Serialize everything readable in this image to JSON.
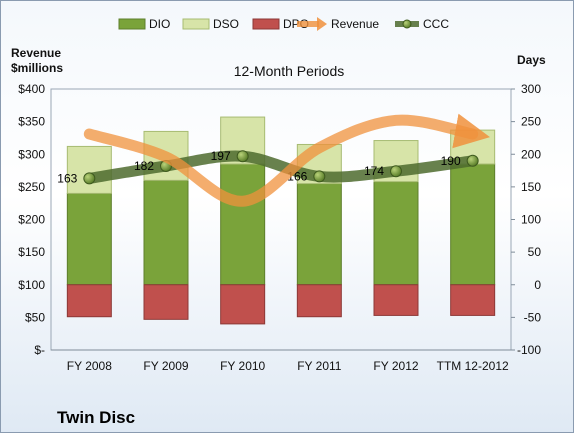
{
  "chart_data": {
    "type": "bar",
    "title": "12-Month Periods",
    "company": "Twin Disc",
    "left_axis_title": [
      "Revenue",
      "$millions"
    ],
    "right_axis_title": "Days",
    "categories": [
      "FY 2008",
      "FY 2009",
      "FY 2010",
      "FY 2011",
      "FY 2012",
      "TTM 12-2012"
    ],
    "left_ticks": [
      "$-",
      "$50",
      "$100",
      "$150",
      "$200",
      "$250",
      "$300",
      "$350",
      "$400"
    ],
    "right_ticks": [
      "-100",
      "-50",
      "0",
      "50",
      "100",
      "150",
      "200",
      "250",
      "300"
    ],
    "ylim_left": [
      0,
      400
    ],
    "ylim_right": [
      -100,
      300
    ],
    "legend": [
      "DIO",
      "DSO",
      "DPO",
      "Revenue",
      "CCC"
    ],
    "legend_position": "top",
    "series": [
      {
        "name": "DIO",
        "axis": "days",
        "type": "stacked-bar",
        "color": "#7aa33a",
        "values": [
          140,
          160,
          185,
          155,
          158,
          185
        ]
      },
      {
        "name": "DSO",
        "axis": "days",
        "type": "stacked-bar",
        "color": "#d7e4a8",
        "values": [
          72,
          75,
          72,
          60,
          63,
          52
        ]
      },
      {
        "name": "DPO",
        "axis": "days",
        "type": "negative-bar",
        "color": "#c0504d",
        "values": [
          -49,
          -53,
          -60,
          -49,
          -47,
          -47
        ]
      },
      {
        "name": "Revenue",
        "axis": "revenue",
        "type": "line",
        "color": "#f0913c",
        "values": [
          331,
          296,
          228,
          310,
          352,
          331
        ]
      },
      {
        "name": "CCC",
        "axis": "days",
        "type": "line",
        "color": "#4d6b2e",
        "values": [
          163,
          182,
          197,
          166,
          174,
          190
        ],
        "labels": [
          "163",
          "182",
          "197",
          "166",
          "174",
          "190"
        ]
      }
    ]
  }
}
